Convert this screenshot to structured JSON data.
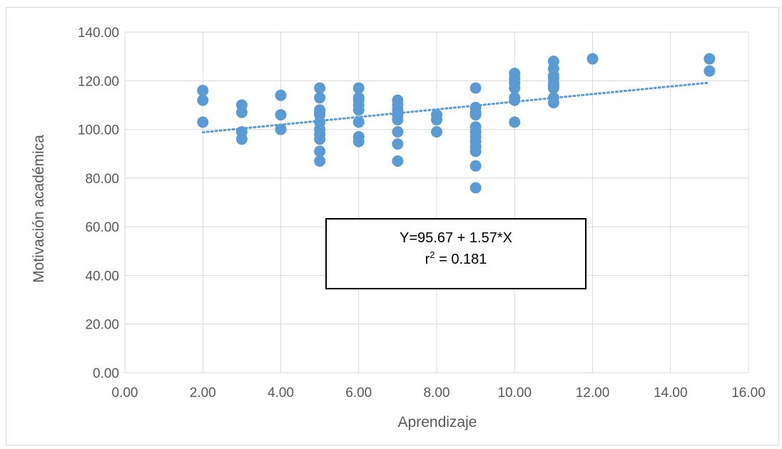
{
  "chart_data": {
    "type": "scatter",
    "title": "",
    "xlabel": "Aprendizaje",
    "ylabel": "Motivación académica",
    "xlim": [
      0,
      16
    ],
    "ylim": [
      0,
      140
    ],
    "x_ticks": [
      "0.00",
      "2.00",
      "4.00",
      "6.00",
      "8.00",
      "10.00",
      "12.00",
      "14.00",
      "16.00"
    ],
    "y_ticks": [
      "0.00",
      "20.00",
      "40.00",
      "60.00",
      "80.00",
      "100.00",
      "120.00",
      "140.00"
    ],
    "grid": true,
    "legend": "none",
    "marker_color": "#5b9bd5",
    "trendline": {
      "type": "linear",
      "style": "dotted",
      "color": "#5b9bd5",
      "intercept": 95.67,
      "slope": 1.57,
      "x_range": [
        2,
        15
      ]
    },
    "annotation": {
      "equation": "Y=95.67 + 1.57*X",
      "r2_prefix": "r",
      "r2_exponent": "2",
      "r2_value": " = 0.181"
    },
    "points": [
      {
        "x": 2,
        "y": 116
      },
      {
        "x": 2,
        "y": 112
      },
      {
        "x": 2,
        "y": 103
      },
      {
        "x": 3,
        "y": 110
      },
      {
        "x": 3,
        "y": 107
      },
      {
        "x": 3,
        "y": 99
      },
      {
        "x": 3,
        "y": 96
      },
      {
        "x": 4,
        "y": 114
      },
      {
        "x": 4,
        "y": 106
      },
      {
        "x": 4,
        "y": 100
      },
      {
        "x": 5,
        "y": 117
      },
      {
        "x": 5,
        "y": 113
      },
      {
        "x": 5,
        "y": 108
      },
      {
        "x": 5,
        "y": 107
      },
      {
        "x": 5,
        "y": 106
      },
      {
        "x": 5,
        "y": 103
      },
      {
        "x": 5,
        "y": 100
      },
      {
        "x": 5,
        "y": 98
      },
      {
        "x": 5,
        "y": 96
      },
      {
        "x": 5,
        "y": 91
      },
      {
        "x": 5,
        "y": 87
      },
      {
        "x": 6,
        "y": 117
      },
      {
        "x": 6,
        "y": 113
      },
      {
        "x": 6,
        "y": 112
      },
      {
        "x": 6,
        "y": 110
      },
      {
        "x": 6,
        "y": 108
      },
      {
        "x": 6,
        "y": 103
      },
      {
        "x": 6,
        "y": 97
      },
      {
        "x": 6,
        "y": 95
      },
      {
        "x": 7,
        "y": 112
      },
      {
        "x": 7,
        "y": 110
      },
      {
        "x": 7,
        "y": 108
      },
      {
        "x": 7,
        "y": 106
      },
      {
        "x": 7,
        "y": 104
      },
      {
        "x": 7,
        "y": 99
      },
      {
        "x": 7,
        "y": 94
      },
      {
        "x": 7,
        "y": 87
      },
      {
        "x": 8,
        "y": 106
      },
      {
        "x": 8,
        "y": 104
      },
      {
        "x": 8,
        "y": 99
      },
      {
        "x": 9,
        "y": 117
      },
      {
        "x": 9,
        "y": 109
      },
      {
        "x": 9,
        "y": 107
      },
      {
        "x": 9,
        "y": 106
      },
      {
        "x": 9,
        "y": 101
      },
      {
        "x": 9,
        "y": 99
      },
      {
        "x": 9,
        "y": 97
      },
      {
        "x": 9,
        "y": 95
      },
      {
        "x": 9,
        "y": 93
      },
      {
        "x": 9,
        "y": 91
      },
      {
        "x": 9,
        "y": 85
      },
      {
        "x": 9,
        "y": 76
      },
      {
        "x": 10,
        "y": 123
      },
      {
        "x": 10,
        "y": 121
      },
      {
        "x": 10,
        "y": 119
      },
      {
        "x": 10,
        "y": 117
      },
      {
        "x": 10,
        "y": 113
      },
      {
        "x": 10,
        "y": 112
      },
      {
        "x": 10,
        "y": 103
      },
      {
        "x": 11,
        "y": 128
      },
      {
        "x": 11,
        "y": 125
      },
      {
        "x": 11,
        "y": 122
      },
      {
        "x": 11,
        "y": 121
      },
      {
        "x": 11,
        "y": 119
      },
      {
        "x": 11,
        "y": 118
      },
      {
        "x": 11,
        "y": 117
      },
      {
        "x": 11,
        "y": 113
      },
      {
        "x": 11,
        "y": 111
      },
      {
        "x": 12,
        "y": 129
      },
      {
        "x": 15,
        "y": 129
      },
      {
        "x": 15,
        "y": 124
      }
    ]
  }
}
